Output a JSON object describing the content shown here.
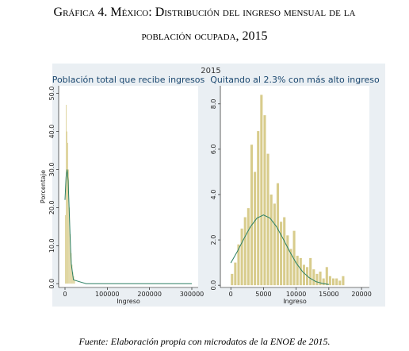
{
  "title": [
    "Gráfica 4. México: Distribución del ingreso mensual de la",
    "población ocupada, 2015"
  ],
  "figure_title": "2015",
  "source": "Fuente: Elaboración propia con microdatos de la ENOE de 2015.",
  "chart_data": [
    {
      "type": "histogram",
      "title": "Población total que recibe ingresos",
      "xlabel": "Ingreso",
      "ylabel": "Porcentaje",
      "color": "#d8cc8c",
      "bins": [
        0,
        2000,
        4000,
        6000,
        8000,
        10000,
        12000,
        14000,
        16000,
        18000,
        20000,
        22000,
        24000
      ],
      "values": [
        18,
        47,
        40,
        37,
        30,
        20,
        13,
        8,
        5,
        3,
        2,
        1
      ],
      "curve": {
        "color": "#2a7f62",
        "x": [
          0,
          2500,
          5000,
          7500,
          10000,
          12500,
          15000,
          20000,
          50000,
          300000
        ],
        "values": [
          22,
          28,
          30,
          27,
          19,
          11,
          5,
          1,
          0,
          0
        ]
      },
      "xlim": [
        -15000,
        315000
      ],
      "xticks": [
        0,
        100000,
        200000,
        300000
      ],
      "ylim": [
        -1,
        52
      ],
      "yticks": [
        {
          "value": 0,
          "label": "0.0"
        },
        {
          "value": 10,
          "label": "10.0"
        },
        {
          "value": 20,
          "label": "20.0"
        },
        {
          "value": 30,
          "label": "30.0"
        },
        {
          "value": 40,
          "label": "40.0"
        },
        {
          "value": 50,
          "label": "50.0"
        }
      ]
    },
    {
      "type": "histogram",
      "title": "Quitando al 2.3% con más alto ingreso",
      "xlabel": "Ingreso",
      "color": "#d8cc8c",
      "bins": [
        0,
        500,
        1000,
        1500,
        2000,
        2500,
        3000,
        3500,
        4000,
        4500,
        5000,
        5500,
        6000,
        6500,
        7000,
        7500,
        8000,
        8500,
        9000,
        9500,
        10000,
        10500,
        11000,
        11500,
        12000,
        12500,
        13000,
        13500,
        14000,
        14500,
        15000,
        15500,
        16000,
        16500,
        17000,
        17500
      ],
      "values": [
        0.5,
        1.0,
        1.8,
        2.5,
        3.0,
        3.4,
        6.2,
        5.0,
        6.8,
        8.4,
        7.5,
        5.8,
        4.0,
        3.6,
        4.5,
        2.8,
        3.0,
        2.2,
        1.6,
        2.4,
        1.3,
        1.2,
        0.9,
        0.8,
        1.2,
        0.7,
        0.5,
        0.6,
        0.3,
        0.8,
        0.4,
        0.3,
        0.3,
        0.2,
        0.4
      ],
      "curve": {
        "color": "#2a7f62",
        "x": [
          0,
          1000,
          2000,
          3000,
          4000,
          5000,
          6000,
          7000,
          8000,
          9000,
          10000,
          11000,
          12000,
          13000,
          14000,
          15000
        ],
        "values": [
          0.98,
          1.49,
          2.05,
          2.58,
          2.96,
          3.1,
          2.96,
          2.58,
          2.05,
          1.49,
          0.98,
          0.59,
          0.33,
          0.16,
          0.08,
          0.03
        ]
      },
      "xlim": [
        -1600,
        21200
      ],
      "xticks": [
        0,
        5000,
        10000,
        15000,
        20000
      ],
      "ylim": [
        -0.1,
        8.8
      ],
      "yticks": [
        {
          "value": 0,
          "label": "0.0"
        },
        {
          "value": 2,
          "label": "2.0"
        },
        {
          "value": 4,
          "label": "4.0"
        },
        {
          "value": 6,
          "label": "6.0"
        },
        {
          "value": 8,
          "label": "8.0"
        }
      ]
    }
  ]
}
